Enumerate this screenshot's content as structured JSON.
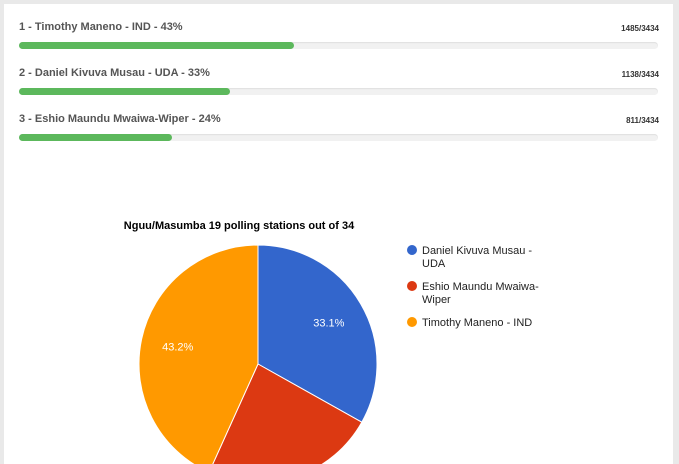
{
  "results": [
    {
      "label": "1 - Timothy Maneno - IND - 43%",
      "count": "1485/3434",
      "progress": 0.43
    },
    {
      "label": "2 - Daniel Kivuva Musau - UDA - 33%",
      "count": "1138/3434",
      "progress": 0.33
    },
    {
      "label": "3 - Eshio Maundu Mwaiwa-Wiper - 24%",
      "count": "811/3434",
      "progress": 0.24
    }
  ],
  "colors": {
    "bar": "#5cb85c",
    "slice_1": "#3366cc",
    "slice_2": "#dc3912",
    "slice_3": "#ff9900"
  },
  "chart_data": {
    "type": "pie",
    "title": "Nguu/Masumba 19 polling stations out of 34",
    "legend_position": "right",
    "slices": [
      {
        "name": "Daniel Kivuva Musau - UDA",
        "legend_lines": [
          "Daniel Kivuva Musau -",
          "UDA"
        ],
        "value": 1138,
        "label": "33.1%",
        "color": "#3366cc"
      },
      {
        "name": "Eshio Maundu Mwaiwa-Wiper",
        "legend_lines": [
          "Eshio Maundu Mwaiwa-",
          "Wiper"
        ],
        "value": 811,
        "label": "",
        "color": "#dc3912"
      },
      {
        "name": "Timothy Maneno - IND",
        "legend_lines": [
          "Timothy Maneno - IND"
        ],
        "value": 1485,
        "label": "43.2%",
        "color": "#ff9900"
      }
    ]
  }
}
